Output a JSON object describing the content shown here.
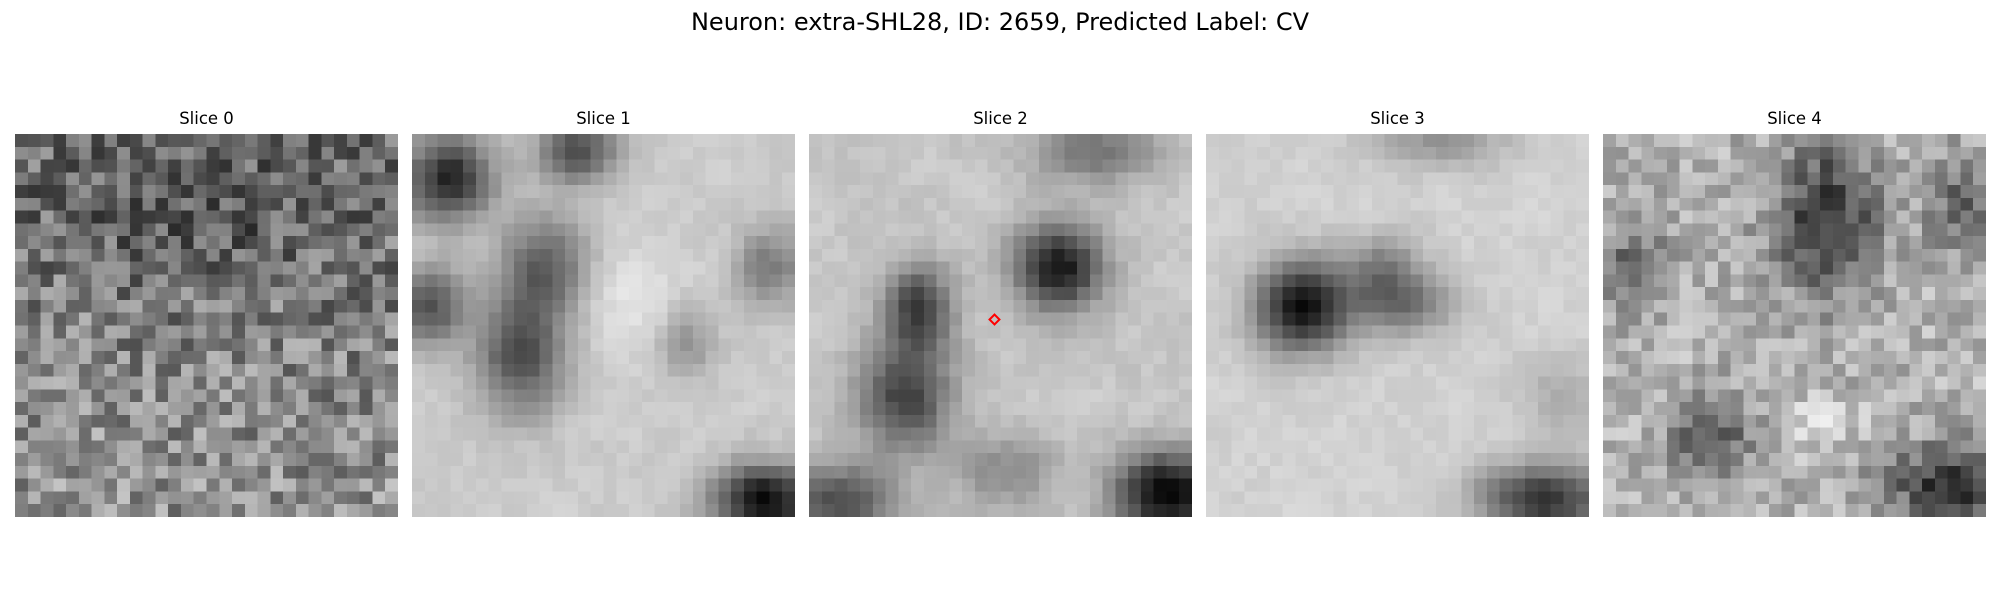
{
  "figure": {
    "title": "Neuron: extra-SHL28, ID: 2659, Predicted Label: CV"
  },
  "slices": [
    {
      "title": "Slice 0"
    },
    {
      "title": "Slice 1"
    },
    {
      "title": "Slice 2"
    },
    {
      "title": "Slice 3"
    },
    {
      "title": "Slice 4"
    }
  ],
  "marker": {
    "slice_index": 2,
    "shape": "diamond",
    "color": "#ff0000",
    "grid_col": 14.5,
    "grid_row": 14.5
  },
  "image_grid": {
    "cols": 30,
    "rows": 30,
    "colormap": "gray"
  }
}
